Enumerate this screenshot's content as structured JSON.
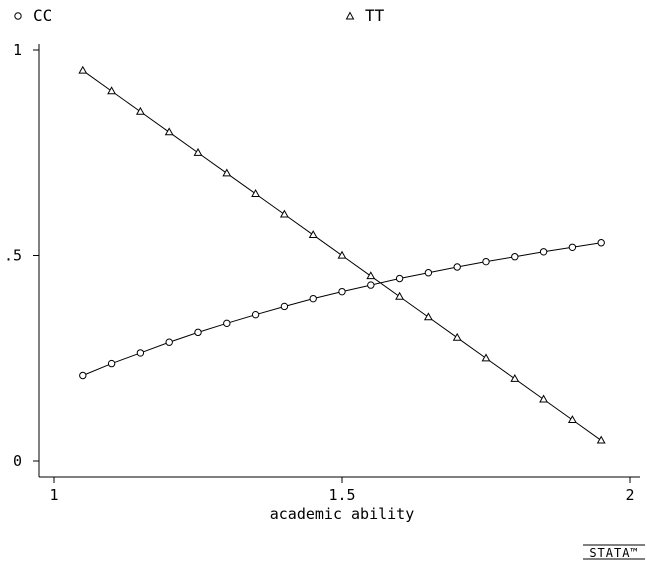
{
  "chart_data": {
    "type": "line",
    "xlabel": "academic ability",
    "ylabel": "",
    "xlim": [
      1,
      2
    ],
    "ylim": [
      0,
      1
    ],
    "x_ticks": [
      "1",
      "1.5",
      "2"
    ],
    "y_ticks": [
      "0",
      ".5",
      "1"
    ],
    "legend_position": "top",
    "grid": false,
    "x": [
      1.05,
      1.1,
      1.15,
      1.2,
      1.25,
      1.3,
      1.35,
      1.4,
      1.45,
      1.5,
      1.55,
      1.6,
      1.65,
      1.7,
      1.75,
      1.8,
      1.85,
      1.9,
      1.95
    ],
    "series": [
      {
        "name": "CC",
        "marker": "circle",
        "values": [
          0.208,
          0.237,
          0.263,
          0.289,
          0.313,
          0.335,
          0.356,
          0.376,
          0.395,
          0.412,
          0.428,
          0.444,
          0.458,
          0.472,
          0.485,
          0.497,
          0.509,
          0.52,
          0.531
        ]
      },
      {
        "name": "TT",
        "marker": "triangle",
        "values": [
          0.95,
          0.9,
          0.85,
          0.8,
          0.75,
          0.7,
          0.65,
          0.6,
          0.55,
          0.5,
          0.45,
          0.4,
          0.35,
          0.3,
          0.25,
          0.2,
          0.15,
          0.1,
          0.05
        ]
      }
    ]
  },
  "logo": {
    "text": "STATA™",
    "color": "#000000"
  }
}
